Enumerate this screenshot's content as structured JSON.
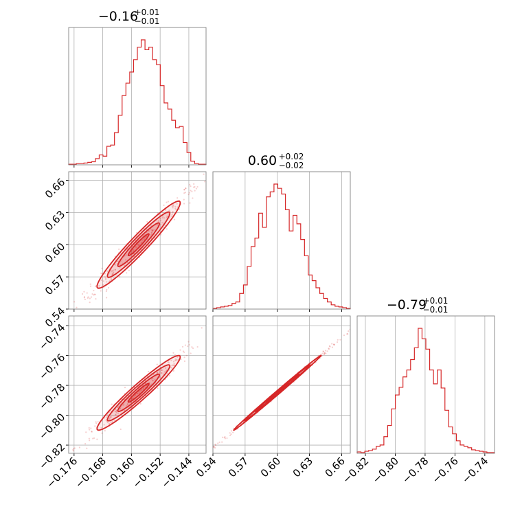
{
  "chart_data": {
    "type": "corner",
    "color": "#d62728",
    "parameters": [
      {
        "range": [
          -0.1775,
          -0.1392
        ],
        "ticks": [
          -0.176,
          -0.168,
          -0.16,
          -0.152,
          -0.144
        ],
        "tick_labels": [
          "−0.176",
          "−0.168",
          "−0.160",
          "−0.152",
          "−0.144"
        ],
        "title": {
          "value": "−0.16",
          "plus": "+0.01",
          "minus": "−0.01"
        },
        "hist": [
          1,
          1,
          2,
          2,
          3,
          4,
          5,
          10,
          16,
          14,
          30,
          32,
          52,
          80,
          112,
          132,
          150,
          170,
          190,
          202,
          186,
          190,
          170,
          162,
          128,
          100,
          90,
          72,
          60,
          62,
          36,
          20,
          6,
          2,
          1,
          1
        ]
      },
      {
        "range": [
          0.54,
          0.668
        ],
        "ticks": [
          0.54,
          0.57,
          0.6,
          0.63,
          0.66
        ],
        "tick_labels": [
          "0.54",
          "0.57",
          "0.60",
          "0.63",
          "0.66"
        ],
        "title": {
          "value": "0.60",
          "plus": "+0.02",
          "minus": "−0.02"
        },
        "hist": [
          1,
          2,
          3,
          4,
          5,
          8,
          10,
          22,
          34,
          60,
          88,
          100,
          135,
          115,
          158,
          165,
          176,
          170,
          162,
          140,
          110,
          132,
          120,
          98,
          75,
          48,
          40,
          30,
          22,
          15,
          10,
          6,
          4,
          3,
          2,
          1
        ]
      },
      {
        "range": [
          -0.8255,
          -0.7335
        ],
        "ticks": [
          -0.82,
          -0.8,
          -0.78,
          -0.76,
          -0.74
        ],
        "tick_labels": [
          "−0.82",
          "−0.80",
          "−0.78",
          "−0.76",
          "−0.74"
        ],
        "title": {
          "value": "−0.79",
          "plus": "+0.01",
          "minus": "−0.01"
        },
        "hist": [
          2,
          1,
          3,
          4,
          6,
          10,
          12,
          24,
          40,
          64,
          84,
          95,
          110,
          120,
          135,
          152,
          180,
          165,
          150,
          120,
          100,
          120,
          94,
          62,
          38,
          28,
          18,
          12,
          10,
          8,
          5,
          4,
          3,
          2,
          1,
          1
        ]
      }
    ],
    "pairs": [
      {
        "row": 1,
        "col": 0,
        "mean": [
          -0.158,
          0.6
        ],
        "sd": [
          0.0058,
          0.0203
        ],
        "rho": 0.96
      },
      {
        "row": 2,
        "col": 0,
        "mean": [
          -0.158,
          -0.785
        ],
        "sd": [
          0.0058,
          0.0125
        ],
        "rho": 0.96
      },
      {
        "row": 2,
        "col": 1,
        "mean": [
          0.6,
          -0.785
        ],
        "sd": [
          0.0203,
          0.0125
        ],
        "rho": 0.998
      }
    ]
  }
}
